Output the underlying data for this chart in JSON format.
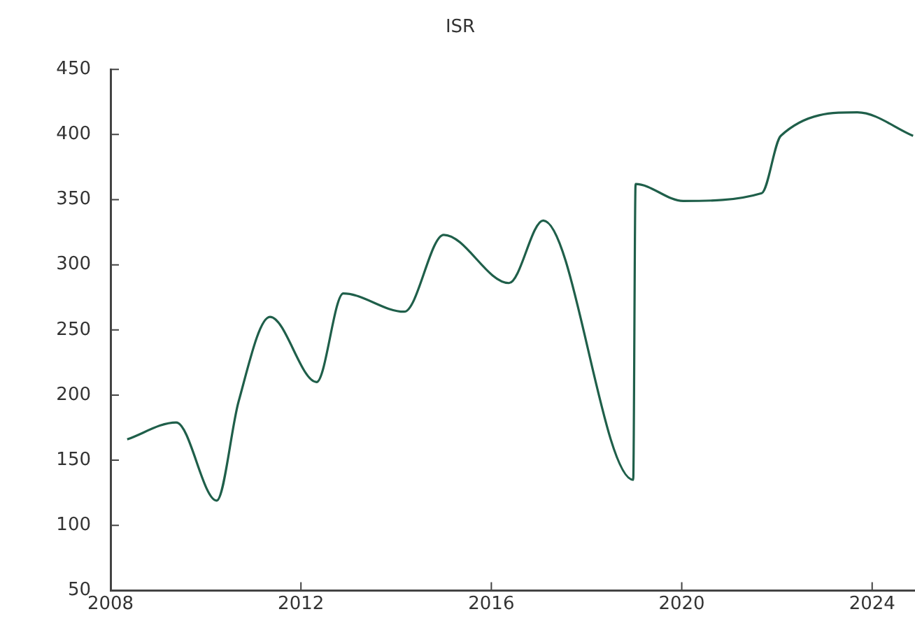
{
  "chart_data": {
    "type": "line",
    "title": "ISR",
    "x": [
      2008.35,
      2009.38,
      2010.23,
      2010.69,
      2011.35,
      2012.33,
      2012.89,
      2014.17,
      2015.0,
      2016.37,
      2017.09,
      2018.98,
      2019.03,
      2020.03,
      2021.68,
      2022.08,
      2023.69,
      2024.86
    ],
    "series": [
      {
        "color": "#1f5f4a",
        "values": [
          166,
          179,
          119,
          195,
          260,
          210,
          278,
          264,
          323,
          286,
          334,
          135,
          362,
          349,
          355,
          399,
          417,
          399
        ]
      }
    ],
    "xlim": [
      2008,
      2024.9
    ],
    "xticks": [
      2008,
      2012,
      2016,
      2020,
      2024
    ],
    "ylim": [
      50,
      450
    ],
    "yticks": [
      50,
      100,
      150,
      200,
      250,
      300,
      350,
      400,
      450
    ],
    "grid": false,
    "legend": false,
    "marker": "none",
    "line_style": "solid"
  }
}
